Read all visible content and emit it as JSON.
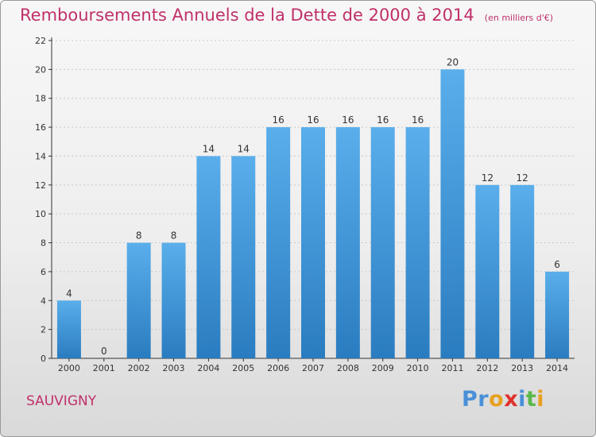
{
  "header": {
    "title": "Remboursements Annuels de la Dette de 2000 à 2014",
    "unit": "(en milliers d'€)"
  },
  "commune": "SAUVIGNY",
  "logo": {
    "text": "Proxiti",
    "letters": [
      {
        "char": "P",
        "color": "#4a90d9"
      },
      {
        "char": "r",
        "color": "#4a90d9"
      },
      {
        "char": "o",
        "color": "#e8a020"
      },
      {
        "char": "x",
        "color": "#e0302a"
      },
      {
        "char": "i",
        "color": "#4a90d9"
      },
      {
        "char": "t",
        "color": "#5ab84a"
      },
      {
        "char": "i",
        "color": "#e8a020"
      }
    ]
  },
  "colors": {
    "title": "#c0306a",
    "bar_top": "#5aaeeb",
    "bar_bottom": "#2a7cc0",
    "axis": "#333333",
    "grid": "#c8c8c8"
  },
  "chart_data": {
    "type": "bar",
    "categories": [
      "2000",
      "2001",
      "2002",
      "2003",
      "2004",
      "2005",
      "2006",
      "2007",
      "2008",
      "2009",
      "2010",
      "2011",
      "2012",
      "2013",
      "2014"
    ],
    "values": [
      4,
      0,
      8,
      8,
      14,
      14,
      16,
      16,
      16,
      16,
      16,
      20,
      12,
      12,
      6
    ],
    "ylim": [
      0,
      22
    ],
    "yticks": [
      0,
      2,
      4,
      6,
      8,
      10,
      12,
      14,
      16,
      18,
      20,
      22
    ],
    "grid": true
  }
}
